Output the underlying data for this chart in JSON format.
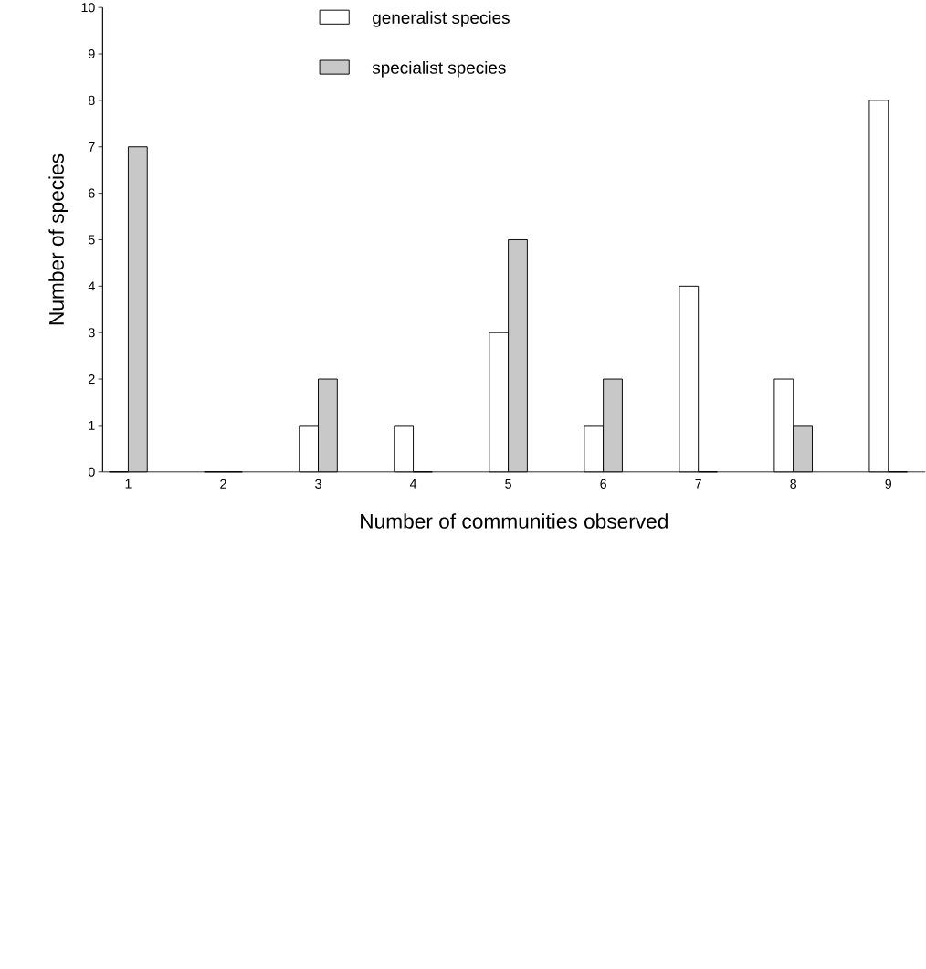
{
  "chart_data": {
    "type": "bar",
    "xlabel": "Number of communities observed",
    "ylabel": "Number of species",
    "categories": [
      "1",
      "2",
      "3",
      "4",
      "5",
      "6",
      "7",
      "8",
      "9"
    ],
    "series": [
      {
        "name": "generalist species",
        "color": "#ffffff",
        "values": [
          0,
          0,
          1,
          1,
          3,
          1,
          4,
          2,
          8
        ]
      },
      {
        "name": "specialist species",
        "color": "#c8c8c8",
        "values": [
          7,
          0,
          2,
          0,
          5,
          2,
          0,
          1,
          0
        ]
      }
    ],
    "ylim": [
      0,
      10
    ],
    "yticks": [
      0,
      1,
      2,
      3,
      4,
      5,
      6,
      7,
      8,
      9,
      10
    ],
    "legend": "top",
    "grid": false
  }
}
